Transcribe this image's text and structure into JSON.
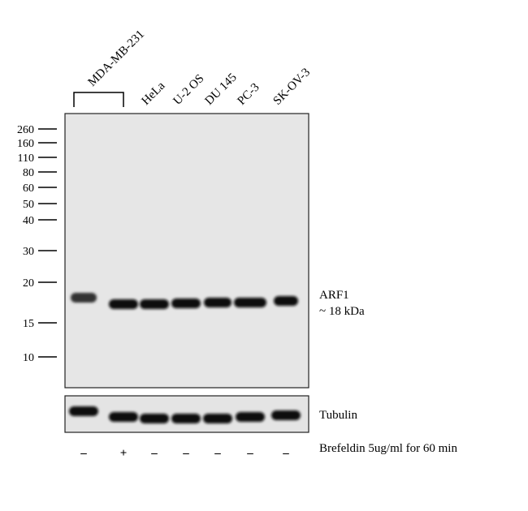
{
  "lanes": {
    "group": "MDA-MB-231",
    "labels": [
      "HeLa",
      "U-2 OS",
      "DU 145",
      "PC-3",
      "SK-OV-3"
    ]
  },
  "markers": [
    "260",
    "160",
    "110",
    "80",
    "60",
    "50",
    "40",
    "30",
    "20",
    "15",
    "10"
  ],
  "bands": {
    "target": "ARF1",
    "size": "~ 18 kDa",
    "control": "Tubulin"
  },
  "treatment": {
    "label": "Brefeldin  5ug/ml  for 60 min",
    "signs": [
      "–",
      "+",
      "–",
      "–",
      "–",
      "–",
      "–"
    ]
  }
}
